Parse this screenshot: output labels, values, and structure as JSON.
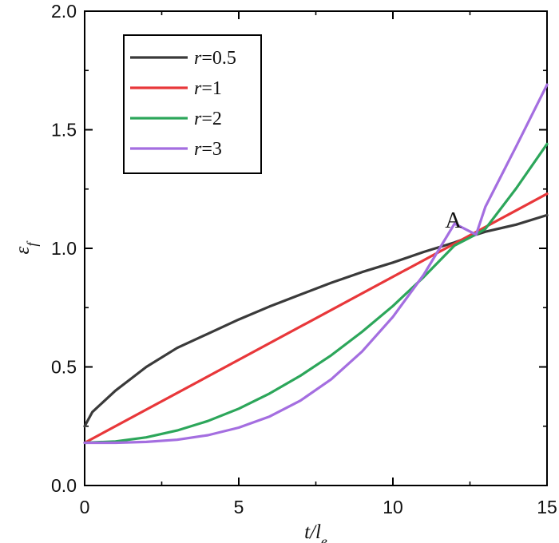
{
  "chart_data": {
    "type": "line",
    "title": "",
    "xlabel": "t/l_e",
    "ylabel": "ε_f",
    "xlim": [
      0,
      15
    ],
    "ylim": [
      0,
      2.0
    ],
    "x_ticks": [
      0,
      5,
      10,
      15
    ],
    "y_ticks": [
      0.0,
      0.5,
      1.0,
      1.5,
      2.0
    ],
    "y_tick_labels": [
      "0.0",
      "0.5",
      "1.0",
      "1.5",
      "2.0"
    ],
    "grid": false,
    "legend": {
      "placement": "top-left",
      "entries": [
        "r=0.5",
        "r=1",
        "r=2",
        "r=3"
      ]
    },
    "series": [
      {
        "name": "r=0.5",
        "color": "#3a3a3a",
        "x": [
          0,
          0.25,
          0.5,
          1,
          1.5,
          2,
          3,
          4,
          5,
          6,
          7,
          8,
          9,
          10,
          11,
          12,
          12.7,
          13,
          14,
          15
        ],
        "y": [
          0.25,
          0.31,
          0.34,
          0.4,
          0.45,
          0.5,
          0.58,
          0.64,
          0.7,
          0.755,
          0.805,
          0.855,
          0.9,
          0.94,
          0.985,
          1.025,
          1.058,
          1.07,
          1.1,
          1.14
        ]
      },
      {
        "name": "r=1",
        "color": "#e8373a",
        "x": [
          0,
          15
        ],
        "y": [
          0.18,
          1.23
        ]
      },
      {
        "name": "r=2",
        "color": "#2ca65a",
        "x": [
          0,
          1,
          2,
          3,
          4,
          5,
          6,
          7,
          8,
          9,
          10,
          11,
          12,
          12.7,
          13,
          14,
          15
        ],
        "y": [
          0.18,
          0.186,
          0.203,
          0.232,
          0.272,
          0.324,
          0.388,
          0.463,
          0.549,
          0.648,
          0.757,
          0.879,
          1.012,
          1.059,
          1.082,
          1.253,
          1.44
        ]
      },
      {
        "name": "r=3",
        "color": "#a46ee0",
        "x": [
          0,
          1,
          2,
          3,
          4,
          5,
          6,
          7,
          8,
          9,
          10,
          11,
          12,
          12.7,
          13,
          14,
          15
        ],
        "y": [
          0.18,
          0.18,
          0.184,
          0.193,
          0.212,
          0.244,
          0.291,
          0.358,
          0.448,
          0.565,
          0.711,
          0.889,
          1.104,
          1.058,
          1.175,
          1.43,
          1.69
        ]
      }
    ],
    "annotations": [
      {
        "text": "A",
        "x": 12.7,
        "y": 1.06
      }
    ]
  }
}
